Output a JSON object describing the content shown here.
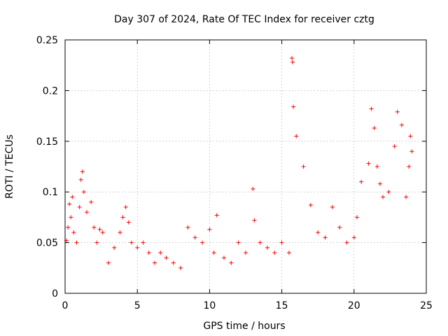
{
  "chart_data": {
    "type": "scatter",
    "title": "Day 307 of 2024, Rate Of TEC Index for receiver cztg",
    "xlabel": "GPS time / hours",
    "ylabel": "ROTI / TECUs",
    "xlim": [
      0,
      25
    ],
    "ylim": [
      0,
      0.25
    ],
    "xticks": [
      "0",
      "5",
      "10",
      "15",
      "20",
      "25"
    ],
    "yticks": [
      "0",
      "0.05",
      "0.1",
      "0.15",
      "0.2",
      "0.25"
    ],
    "grid": true,
    "marker": "+",
    "color": "#ff0000",
    "series": [
      {
        "x": [
          0.1,
          0.2,
          0.3,
          0.4,
          0.5,
          0.6,
          0.8,
          1.0,
          1.1,
          1.2,
          1.3,
          1.5,
          1.8,
          2.0,
          2.2,
          2.4,
          2.6,
          3.0,
          3.4,
          3.8,
          4.0,
          4.2,
          4.4,
          4.6,
          5.0,
          5.4,
          5.8,
          6.2,
          6.6,
          7.0,
          7.5,
          8.0,
          8.5,
          9.0,
          9.5,
          10.0,
          10.3,
          10.5,
          11.0,
          11.5,
          12.0,
          12.5,
          13.0,
          13.1,
          13.5,
          14.0,
          14.5,
          15.0,
          15.5,
          15.7,
          15.75,
          15.8,
          16.0,
          16.5,
          17.0,
          17.5,
          18.0,
          18.5,
          19.0,
          19.5,
          20.0,
          20.2,
          20.5,
          21.0,
          21.2,
          21.4,
          21.6,
          21.8,
          22.0,
          22.4,
          22.8,
          23.0,
          23.3,
          23.6,
          23.8,
          23.9,
          24.0
        ],
        "y": [
          0.052,
          0.065,
          0.088,
          0.075,
          0.095,
          0.06,
          0.05,
          0.085,
          0.112,
          0.12,
          0.1,
          0.08,
          0.09,
          0.065,
          0.05,
          0.063,
          0.06,
          0.03,
          0.045,
          0.06,
          0.075,
          0.085,
          0.07,
          0.05,
          0.045,
          0.05,
          0.04,
          0.03,
          0.04,
          0.035,
          0.03,
          0.025,
          0.065,
          0.055,
          0.05,
          0.063,
          0.04,
          0.077,
          0.035,
          0.03,
          0.05,
          0.04,
          0.103,
          0.072,
          0.05,
          0.045,
          0.04,
          0.05,
          0.04,
          0.232,
          0.228,
          0.184,
          0.155,
          0.125,
          0.087,
          0.06,
          0.055,
          0.085,
          0.065,
          0.05,
          0.055,
          0.075,
          0.11,
          0.128,
          0.182,
          0.163,
          0.125,
          0.108,
          0.095,
          0.1,
          0.145,
          0.179,
          0.166,
          0.095,
          0.125,
          0.155,
          0.14
        ]
      }
    ]
  }
}
